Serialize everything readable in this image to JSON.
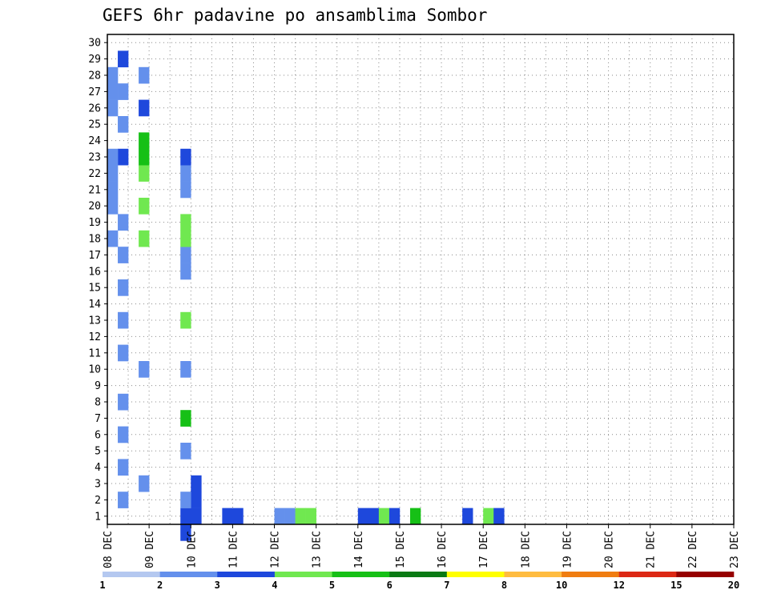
{
  "chart_data": {
    "type": "heatmap",
    "title": "GEFS 6hr padavine po ansamblima Sombor",
    "xlabel": "",
    "ylabel": "",
    "x_ticks": [
      "08 DEC",
      "09 DEC",
      "10 DEC",
      "11 DEC",
      "12 DEC",
      "13 DEC",
      "14 DEC",
      "15 DEC",
      "16 DEC",
      "17 DEC",
      "18 DEC",
      "19 DEC",
      "20 DEC",
      "21 DEC",
      "22 DEC",
      "23 DEC"
    ],
    "y_ticks": [
      "1",
      "2",
      "3",
      "4",
      "5",
      "6",
      "7",
      "8",
      "9",
      "10",
      "11",
      "12",
      "13",
      "14",
      "15",
      "16",
      "17",
      "18",
      "19",
      "20",
      "21",
      "22",
      "23",
      "24",
      "25",
      "26",
      "27",
      "28",
      "29",
      "30"
    ],
    "xlim_steps": [
      0,
      60
    ],
    "ylim": [
      0,
      30
    ],
    "grid": true,
    "colorbar": {
      "position": "bottom",
      "labels": [
        "1",
        "2",
        "3",
        "4",
        "5",
        "6",
        "7",
        "8",
        "10",
        "12",
        "15",
        "20"
      ],
      "colors": [
        "#b4c8f0",
        "#6490ec",
        "#1e48dc",
        "#70e850",
        "#16c016",
        "#0a7a14",
        "#ffff00",
        "#ffbc40",
        "#f07d10",
        "#dc2814",
        "#960000"
      ]
    },
    "cells": [
      [
        8,
        1,
        2
      ],
      [
        8,
        2,
        2
      ],
      [
        8,
        3,
        2
      ],
      [
        11,
        1,
        2
      ],
      [
        12,
        1,
        2
      ],
      [
        16,
        1,
        1
      ],
      [
        17,
        1,
        1
      ],
      [
        18,
        1,
        3
      ],
      [
        19,
        1,
        3
      ],
      [
        24,
        1,
        2
      ],
      [
        25,
        1,
        2
      ],
      [
        26,
        1,
        3
      ],
      [
        27,
        1,
        2
      ],
      [
        29,
        1,
        4
      ],
      [
        34,
        1,
        2
      ],
      [
        36,
        1,
        3
      ],
      [
        37,
        1,
        2
      ],
      [
        1,
        2,
        1
      ],
      [
        1,
        4,
        1
      ],
      [
        1,
        6,
        1
      ],
      [
        1,
        8,
        1
      ],
      [
        1,
        11,
        1
      ],
      [
        1,
        13,
        1
      ],
      [
        1,
        15,
        1
      ],
      [
        1,
        17,
        1
      ],
      [
        1,
        19,
        1
      ],
      [
        1,
        23,
        2
      ],
      [
        1,
        25,
        1
      ],
      [
        1,
        27,
        1
      ],
      [
        1,
        29,
        2
      ],
      [
        3,
        3,
        1
      ],
      [
        3,
        10,
        1
      ],
      [
        3,
        18,
        3
      ],
      [
        3,
        20,
        3
      ],
      [
        3,
        22,
        3
      ],
      [
        3,
        23,
        4
      ],
      [
        3,
        24,
        4
      ],
      [
        3,
        26,
        2
      ],
      [
        3,
        28,
        1
      ],
      [
        7,
        0,
        2
      ],
      [
        7,
        1,
        2
      ],
      [
        7,
        2,
        1
      ],
      [
        7,
        5,
        1
      ],
      [
        7,
        7,
        4
      ],
      [
        7,
        10,
        1
      ],
      [
        7,
        13,
        3
      ],
      [
        7,
        16,
        1
      ],
      [
        7,
        17,
        1
      ],
      [
        7,
        18,
        3
      ],
      [
        7,
        19,
        3
      ],
      [
        7,
        21,
        1
      ],
      [
        7,
        22,
        1
      ],
      [
        7,
        23,
        2
      ],
      [
        0,
        18,
        1
      ],
      [
        0,
        20,
        1
      ],
      [
        0,
        21,
        1
      ],
      [
        0,
        22,
        1
      ],
      [
        0,
        23,
        1
      ],
      [
        0,
        26,
        1
      ],
      [
        0,
        27,
        1
      ],
      [
        0,
        28,
        1
      ]
    ]
  }
}
